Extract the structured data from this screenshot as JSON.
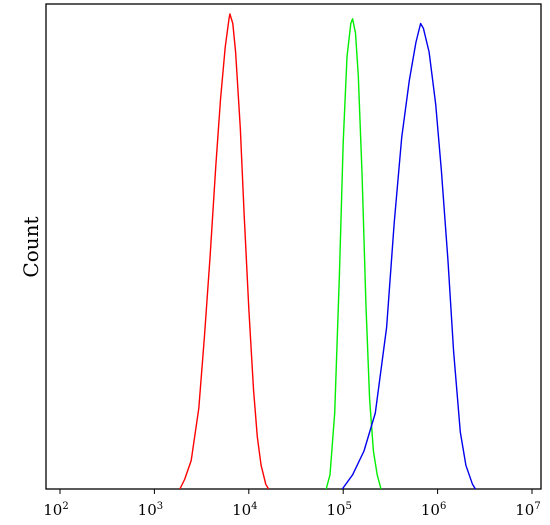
{
  "chart_data": {
    "type": "line",
    "title": "",
    "xlabel": "",
    "ylabel": "Count",
    "x_scale": "log",
    "xlim": [
      100,
      10000000
    ],
    "ylim": [
      0,
      1
    ],
    "grid": false,
    "legend": "none",
    "x_ticks": [
      {
        "base": "10",
        "exp": "2",
        "value": 100
      },
      {
        "base": "10",
        "exp": "3",
        "value": 1000
      },
      {
        "base": "10",
        "exp": "4",
        "value": 10000
      },
      {
        "base": "10",
        "exp": "5",
        "value": 100000
      },
      {
        "base": "10",
        "exp": "6",
        "value": 1000000
      },
      {
        "base": "10",
        "exp": "7",
        "value": 10000000
      }
    ],
    "series": [
      {
        "color": "#ff0000",
        "points": [
          [
            1862,
            0
          ],
          [
            2089,
            0.02
          ],
          [
            2455,
            0.06
          ],
          [
            2951,
            0.17
          ],
          [
            3388,
            0.32
          ],
          [
            3890,
            0.49
          ],
          [
            4467,
            0.68
          ],
          [
            5012,
            0.82
          ],
          [
            5623,
            0.93
          ],
          [
            6166,
            0.99
          ],
          [
            6310,
            1.0
          ],
          [
            6761,
            0.98
          ],
          [
            7244,
            0.92
          ],
          [
            8128,
            0.76
          ],
          [
            8913,
            0.58
          ],
          [
            10000,
            0.38
          ],
          [
            11220,
            0.21
          ],
          [
            12303,
            0.11
          ],
          [
            13490,
            0.05
          ],
          [
            15136,
            0.01
          ],
          [
            16218,
            0
          ]
        ]
      },
      {
        "color": "#00ee00",
        "points": [
          [
            66069,
            0
          ],
          [
            72444,
            0.03
          ],
          [
            81283,
            0.16
          ],
          [
            91201,
            0.45
          ],
          [
            100000,
            0.73
          ],
          [
            109648,
            0.91
          ],
          [
            120226,
            0.98
          ],
          [
            125893,
            0.99
          ],
          [
            134896,
            0.96
          ],
          [
            144544,
            0.87
          ],
          [
            158489,
            0.66
          ],
          [
            173780,
            0.39
          ],
          [
            190546,
            0.19
          ],
          [
            208930,
            0.08
          ],
          [
            229087,
            0.03
          ],
          [
            251189,
            0
          ]
        ]
      },
      {
        "color": "#0000ee",
        "points": [
          [
            97724,
            0
          ],
          [
            125893,
            0.03
          ],
          [
            165959,
            0.08
          ],
          [
            218776,
            0.16
          ],
          [
            288403,
            0.34
          ],
          [
            346737,
            0.56
          ],
          [
            416869,
            0.74
          ],
          [
            501187,
            0.86
          ],
          [
            588844,
            0.94
          ],
          [
            660693,
            0.98
          ],
          [
            707946,
            0.97
          ],
          [
            812831,
            0.92
          ],
          [
            954993,
            0.81
          ],
          [
            1096478,
            0.67
          ],
          [
            1288250,
            0.48
          ],
          [
            1479108,
            0.29
          ],
          [
            1737801,
            0.12
          ],
          [
            1995262,
            0.05
          ],
          [
            2344229,
            0.01
          ],
          [
            2511886,
            0
          ]
        ]
      }
    ]
  }
}
